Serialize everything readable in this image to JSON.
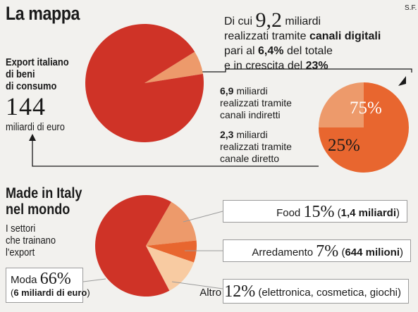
{
  "header": {
    "title": "La mappa",
    "source": "S.F."
  },
  "export": {
    "label_1": "Export italiano",
    "label_2": "di beni",
    "label_3": "di consumo",
    "value": "144",
    "unit": "miliardi di euro"
  },
  "digital": {
    "pre": "Di cui",
    "value": "9,2",
    "unit": "miliardi",
    "line2_pre": "realizzati tramite",
    "line2_b": "canali digitali",
    "line3_pre": "pari al",
    "line3_b": "6,4%",
    "line3_post": "del totale",
    "line4_pre": "e in crescita del",
    "line4_b": "23%"
  },
  "indirect": {
    "value": "6,9",
    "unit": "miliardi",
    "l2": "realizzati tramite",
    "l3": "canali indiretti"
  },
  "direct": {
    "value": "2,3",
    "unit": "miliardi",
    "l2": "realizzati tramite",
    "l3": "canale diretto"
  },
  "made": {
    "title_1": "Made in Italy",
    "title_2": "nel mondo",
    "sub_1": "I settori",
    "sub_2": "che trainano",
    "sub_3": "l'export"
  },
  "sectors": {
    "food": {
      "name": "Food",
      "pct": "15%",
      "extra_b": "1,4 miliardi"
    },
    "arredamento": {
      "name": "Arredamento",
      "pct": "7%",
      "extra_b": "644 milioni"
    },
    "altro": {
      "name": "Altro",
      "pct": "12%",
      "extra": "elettronica, cosmetica, giochi"
    },
    "moda": {
      "name": "Moda",
      "pct": "66%",
      "extra_b": "6 miliardi di euro"
    }
  },
  "colors": {
    "red": "#cf3327",
    "orange": "#e8662f",
    "salmon": "#ed9a6b",
    "cream": "#f8cba2",
    "dark": "#1a1a1a"
  },
  "chart_data": [
    {
      "type": "pie",
      "title": "Export italiano di beni di consumo",
      "slices": [
        {
          "label": "Canali digitali",
          "value": 6.4
        },
        {
          "label": "Altro",
          "value": 93.6
        }
      ]
    },
    {
      "type": "pie",
      "title": "Canali digitali",
      "slices": [
        {
          "label": "Canali indiretti",
          "value": 75
        },
        {
          "label": "Canale diretto",
          "value": 25
        }
      ]
    },
    {
      "type": "pie",
      "title": "Made in Italy nel mondo",
      "slices": [
        {
          "label": "Food",
          "value": 15
        },
        {
          "label": "Arredamento",
          "value": 7
        },
        {
          "label": "Altro",
          "value": 12
        },
        {
          "label": "Moda",
          "value": 66
        }
      ]
    }
  ]
}
